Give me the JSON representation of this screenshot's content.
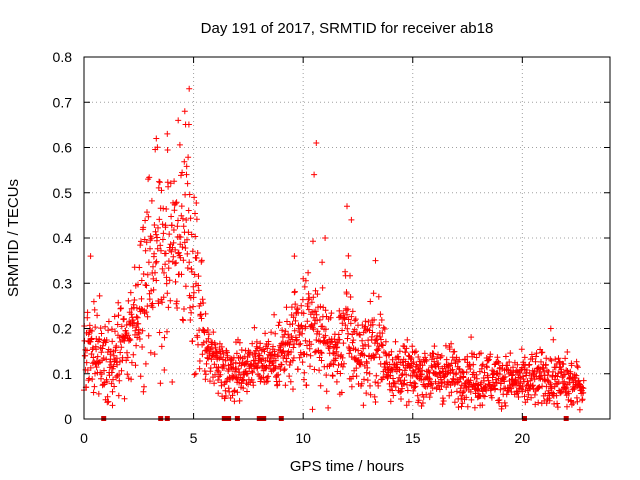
{
  "chart_data": {
    "type": "scatter",
    "title": "Day 191 of 2017, SRMTID for receiver ab18",
    "xlabel": "GPS time / hours",
    "ylabel": "SRMTID / TECUs",
    "xlim": [
      0,
      24
    ],
    "ylim": [
      0,
      0.8
    ],
    "xticks": [
      0,
      5,
      10,
      15,
      20
    ],
    "xtick_labels": [
      "0",
      "5",
      "10",
      "15",
      "20"
    ],
    "yticks": [
      0,
      0.1,
      0.2,
      0.3,
      0.4,
      0.5,
      0.6,
      0.7,
      0.8
    ],
    "ytick_labels": [
      "0",
      "0.1",
      "0.2",
      "0.3",
      "0.4",
      "0.5",
      "0.6",
      "0.7",
      "0.8"
    ],
    "grid": true,
    "marker": "+",
    "color": "#ff0000",
    "gap_marker_color": "#cc0000",
    "series": [
      {
        "name": "SRMTID",
        "profile": [
          [
            0.0,
            0.15,
            0.05
          ],
          [
            0.5,
            0.15,
            0.05
          ],
          [
            1.0,
            0.14,
            0.05
          ],
          [
            1.5,
            0.15,
            0.05
          ],
          [
            2.0,
            0.17,
            0.05
          ],
          [
            2.5,
            0.24,
            0.07
          ],
          [
            3.0,
            0.32,
            0.1
          ],
          [
            3.5,
            0.4,
            0.12
          ],
          [
            4.0,
            0.4,
            0.12
          ],
          [
            4.5,
            0.42,
            0.12
          ],
          [
            5.0,
            0.33,
            0.1
          ],
          [
            5.5,
            0.17,
            0.04
          ],
          [
            6.0,
            0.13,
            0.03
          ],
          [
            6.5,
            0.11,
            0.03
          ],
          [
            7.0,
            0.11,
            0.03
          ],
          [
            7.5,
            0.12,
            0.03
          ],
          [
            8.0,
            0.13,
            0.03
          ],
          [
            9.0,
            0.14,
            0.04
          ],
          [
            10.0,
            0.18,
            0.06
          ],
          [
            10.5,
            0.22,
            0.07
          ],
          [
            11.0,
            0.17,
            0.05
          ],
          [
            11.5,
            0.14,
            0.04
          ],
          [
            12.0,
            0.21,
            0.08
          ],
          [
            12.5,
            0.14,
            0.04
          ],
          [
            13.0,
            0.15,
            0.05
          ],
          [
            13.5,
            0.16,
            0.06
          ],
          [
            14.0,
            0.11,
            0.03
          ],
          [
            15.0,
            0.1,
            0.03
          ],
          [
            16.0,
            0.1,
            0.03
          ],
          [
            17.0,
            0.1,
            0.03
          ],
          [
            18.0,
            0.09,
            0.03
          ],
          [
            19.0,
            0.09,
            0.03
          ],
          [
            20.0,
            0.08,
            0.03
          ],
          [
            21.0,
            0.09,
            0.03
          ],
          [
            22.0,
            0.08,
            0.03
          ],
          [
            22.8,
            0.07,
            0.02
          ]
        ],
        "notable_points": [
          [
            4.8,
            0.73
          ],
          [
            4.6,
            0.68
          ],
          [
            4.3,
            0.66
          ],
          [
            3.8,
            0.63
          ],
          [
            3.3,
            0.62
          ],
          [
            10.6,
            0.61
          ],
          [
            10.5,
            0.54
          ],
          [
            12.0,
            0.47
          ],
          [
            12.2,
            0.44
          ],
          [
            11.0,
            0.4
          ],
          [
            13.3,
            0.35
          ],
          [
            9.6,
            0.36
          ],
          [
            0.3,
            0.36
          ],
          [
            21.3,
            0.2
          ],
          [
            7.1,
            0.04
          ],
          [
            1.3,
            0.03
          ]
        ]
      }
    ],
    "data_gap_markers_x": [
      0.9,
      3.5,
      3.8,
      6.4,
      6.6,
      7.0,
      8.0,
      8.2,
      9.0,
      20.1,
      22.0
    ]
  }
}
